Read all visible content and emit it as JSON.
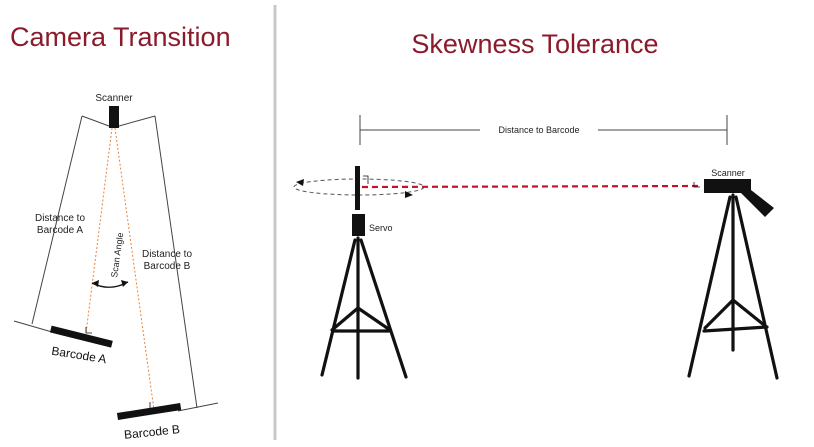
{
  "left_panel": {
    "title": "Camera Transition",
    "scanner_label": "Scanner",
    "distance_a_line1": "Distance to",
    "distance_a_line2": "Barcode A",
    "distance_b_line1": "Distance to",
    "distance_b_line2": "Barcode B",
    "scan_angle_label": "Scan Angle",
    "barcode_a_label": "Barcode A",
    "barcode_b_label": "Barcode B"
  },
  "right_panel": {
    "title": "Skewness Tolerance",
    "distance_label": "Distance to Barcode",
    "servo_label": "Servo",
    "scanner_label": "Scanner"
  },
  "colors": {
    "title": "#8b1a2b",
    "beam_red": "#c8102e",
    "scan_orange": "#e8833a",
    "divider": "#c8c8c8"
  }
}
